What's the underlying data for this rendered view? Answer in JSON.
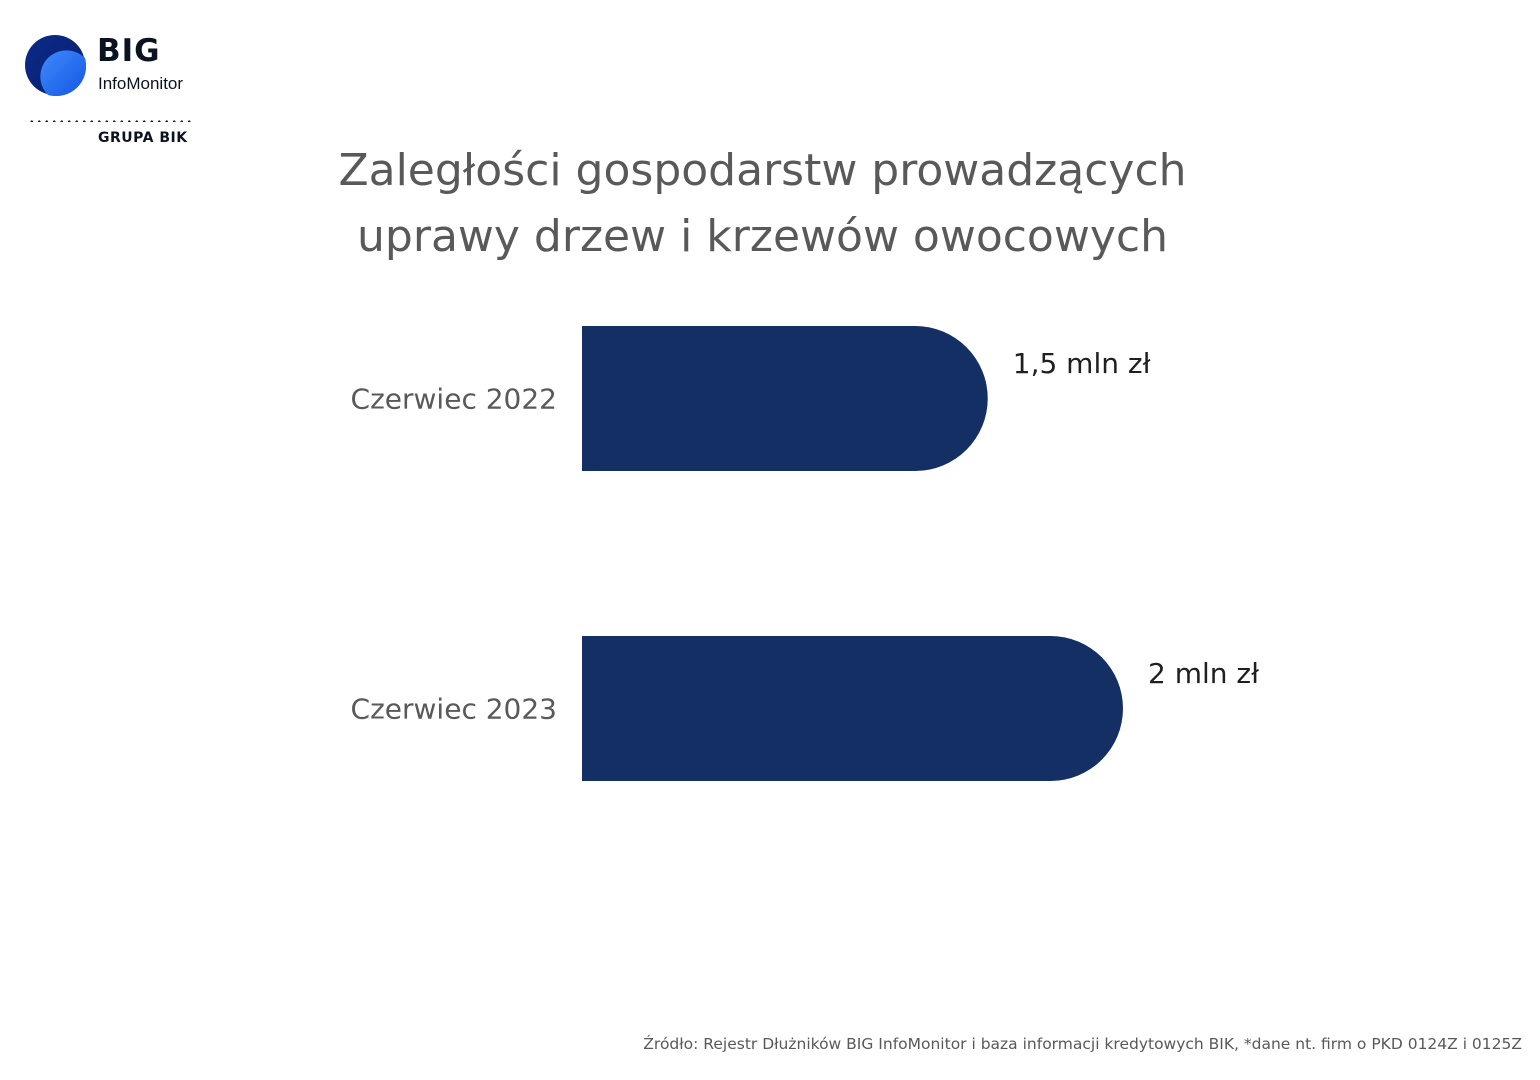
{
  "logo": {
    "brand": "BIG",
    "subbrand": "InfoMonitor",
    "group": "GRUPA BIK"
  },
  "colors": {
    "bar": "#142f63",
    "title": "#595959",
    "value_label": "#1f1f1f"
  },
  "chart_data": {
    "type": "bar",
    "orientation": "horizontal",
    "title_lines": [
      "Zaległości gospodarstw prowadzących",
      "uprawy drzew i krzewów owocowych"
    ],
    "categories": [
      "Czerwiec 2022",
      "Czerwiec 2023"
    ],
    "values": [
      1.5,
      2
    ],
    "value_labels": [
      "1,5 mln zł",
      "2 mln zł"
    ],
    "unit": "mln zł",
    "xlim": [
      0,
      2
    ],
    "grid": false,
    "legend": false
  },
  "source": "Źródło: Rejestr Dłużników BIG InfoMonitor i baza informacji kredytowych BIK, *dane nt. firm o PKD 0124Z i 0125Z"
}
